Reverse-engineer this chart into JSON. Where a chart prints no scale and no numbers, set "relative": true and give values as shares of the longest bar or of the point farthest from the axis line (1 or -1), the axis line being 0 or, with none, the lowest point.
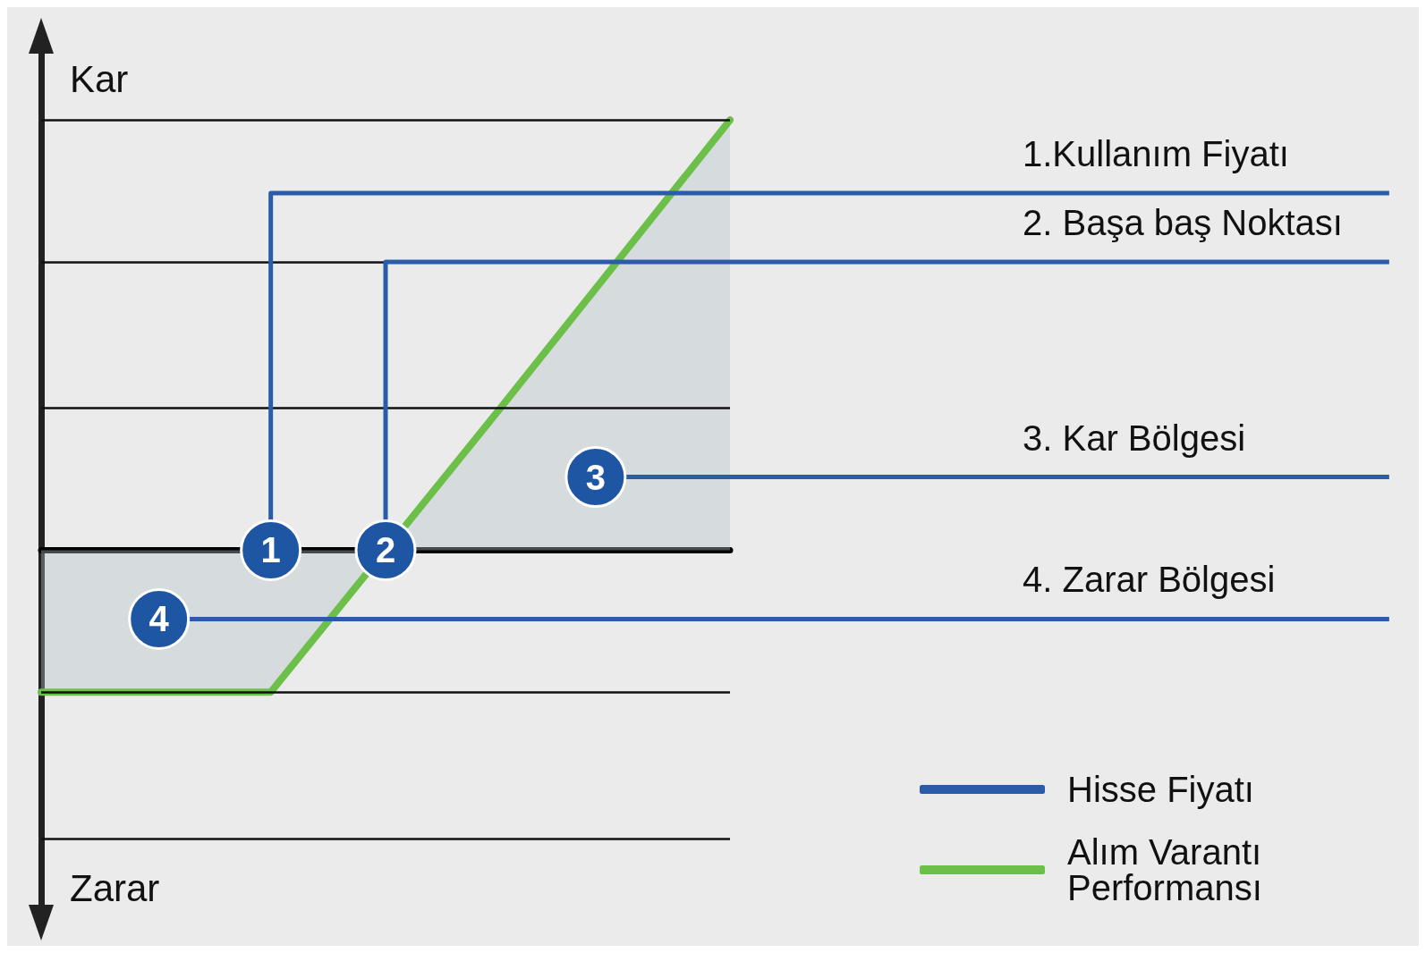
{
  "chart_data": {
    "type": "area",
    "relative": true,
    "categories": [
      null,
      null,
      null,
      null
    ],
    "series": [
      {
        "name": "Hisse Fiyatı",
        "type": "line",
        "color": "#2a5caa",
        "values": [
          null,
          null,
          null,
          null
        ]
      },
      {
        "name": "Alım Varantı Performansı",
        "color": "#6cc04a",
        "values": [
          -0.33,
          -0.33,
          0.33,
          1
        ]
      }
    ],
    "ref_lines": [
      {
        "axis": "y",
        "value": 1,
        "color": "#111111"
      },
      {
        "axis": "y",
        "value": 0.67,
        "color": "#111111"
      },
      {
        "axis": "y",
        "value": 0.33,
        "color": "#111111"
      },
      {
        "axis": "y",
        "value": -0.33,
        "color": "#111111"
      },
      {
        "axis": "y",
        "value": -0.67,
        "color": "#111111"
      },
      {
        "axis": "y",
        "value": 0.83,
        "label": "1.Kullanım Fiyatı",
        "color": "#2a5caa"
      },
      {
        "axis": "y",
        "value": 0.67,
        "label": "2. Başa baş Noktası",
        "color": "#2a5caa"
      },
      {
        "axis": "y",
        "value": 0.17,
        "label": "3. Kar Bölgesi",
        "color": "#2a5caa"
      },
      {
        "axis": "y",
        "value": -0.16,
        "label": "4. Zarar Bölgesi",
        "color": "#2a5caa"
      }
    ],
    "legend": "bottom right",
    "line_style": "solid",
    "annotations": [
      "1",
      "2",
      "3",
      "4",
      "Kar",
      "Zarar"
    ]
  }
}
